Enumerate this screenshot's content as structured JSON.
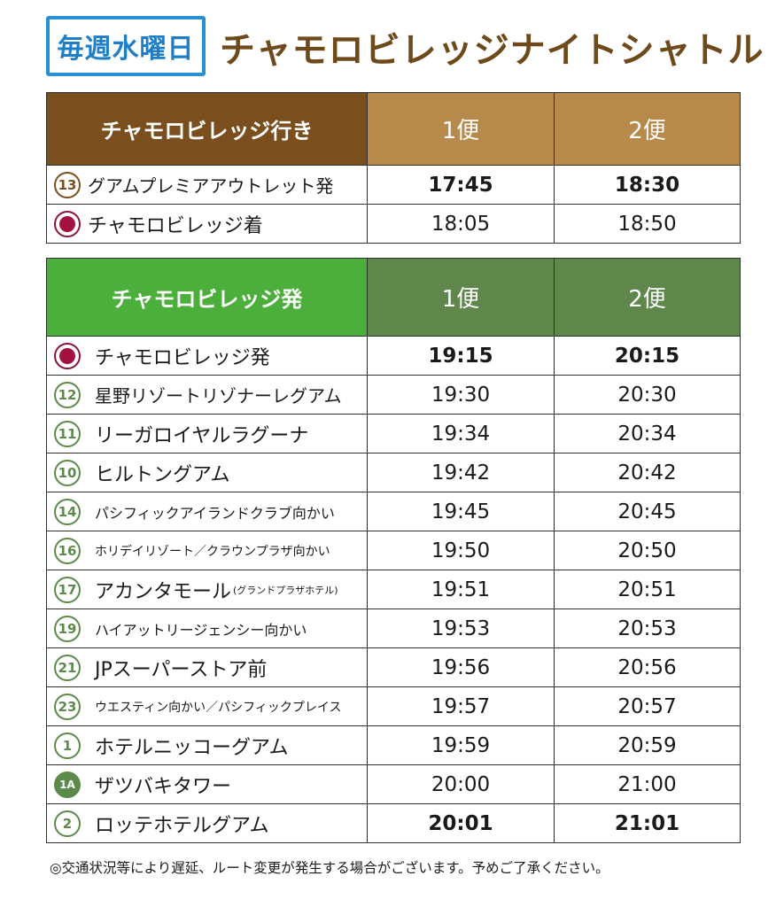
{
  "header": {
    "badge": "毎週水曜日",
    "title": "チャモロビレッジナイトシャトル"
  },
  "inbound": {
    "heading": "チャモロビレッジ行き",
    "bin1": "1便",
    "bin2": "2便",
    "rows": [
      {
        "marker": "13",
        "stop": "グアムプレミアアウトレット発",
        "t1": "17:45",
        "t2": "18:30"
      },
      {
        "marker": "dot",
        "stop": "チャモロビレッジ着",
        "t1": "18:05",
        "t2": "18:50"
      }
    ]
  },
  "outbound": {
    "heading": "チャモロビレッジ発",
    "bin1": "1便",
    "bin2": "2便",
    "rows": [
      {
        "marker": "dot",
        "stop": "チャモロビレッジ発",
        "t1": "19:15",
        "t2": "20:15"
      },
      {
        "marker": "12",
        "stop": "星野リゾートリゾナーレグアム",
        "t1": "19:30",
        "t2": "20:30"
      },
      {
        "marker": "11",
        "stop": "リーガロイヤルラグーナ",
        "t1": "19:34",
        "t2": "20:34"
      },
      {
        "marker": "10",
        "stop": "ヒルトングアム",
        "t1": "19:42",
        "t2": "20:42"
      },
      {
        "marker": "14",
        "stop": "パシフィックアイランドクラブ向かい",
        "t1": "19:45",
        "t2": "20:45"
      },
      {
        "marker": "16",
        "stop": "ホリデイリゾート／クラウンプラザ向かい",
        "t1": "19:50",
        "t2": "20:50"
      },
      {
        "marker": "17",
        "stop": "アカンタモール",
        "stop_sub": "(グランドプラザホテル)",
        "t1": "19:51",
        "t2": "20:51"
      },
      {
        "marker": "19",
        "stop": "ハイアットリージェンシー向かい",
        "t1": "19:53",
        "t2": "20:53"
      },
      {
        "marker": "21",
        "stop": "JPスーパーストア前",
        "t1": "19:56",
        "t2": "20:56"
      },
      {
        "marker": "23",
        "stop": "ウエスティン向かい／パシフィックプレイス",
        "t1": "19:57",
        "t2": "20:57"
      },
      {
        "marker": "1",
        "stop": "ホテルニッコーグアム",
        "t1": "19:59",
        "t2": "20:59"
      },
      {
        "marker": "1A",
        "stop": "ザツバキタワー",
        "t1": "20:00",
        "t2": "21:00"
      },
      {
        "marker": "2",
        "stop": "ロッテホテルグアム",
        "t1": "20:01",
        "t2": "21:01"
      }
    ]
  },
  "footer_note": "◎交通状況等により遅延、ルート変更が発生する場合がございます。予めご了承ください。"
}
